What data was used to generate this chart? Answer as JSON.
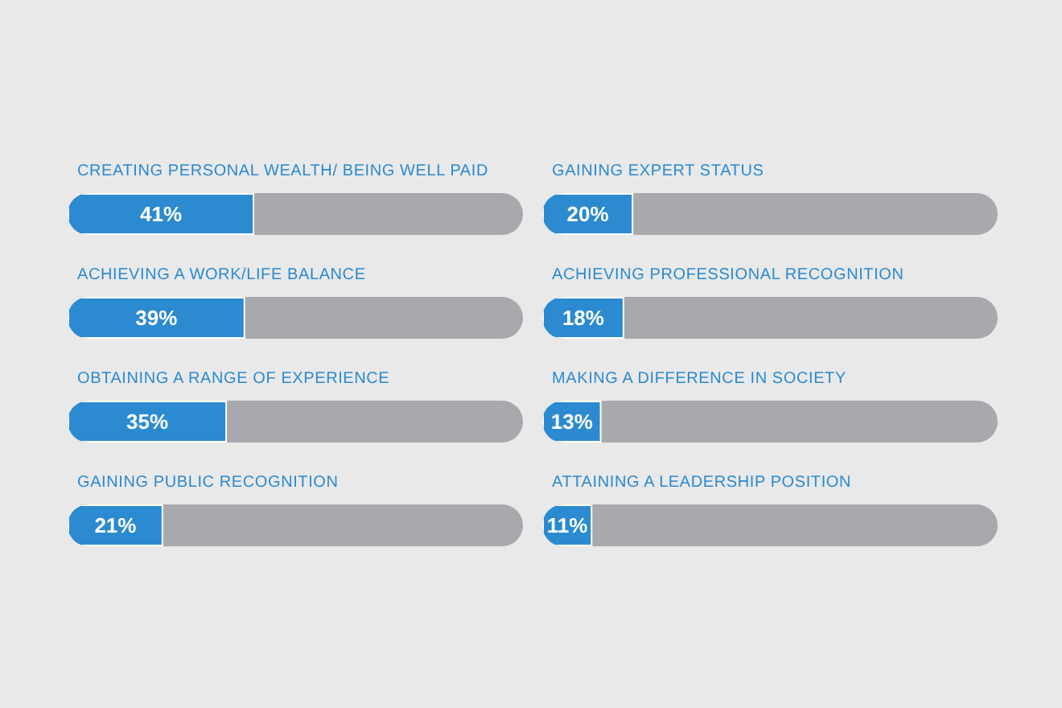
{
  "chart_data": [
    {
      "type": "bar",
      "orientation": "horizontal",
      "stacked": true,
      "xlim": [
        0,
        100
      ],
      "tick_labels": false,
      "categories": [
        "CREATING PERSONAL WEALTH/ BEING WELL PAID",
        "ACHIEVING A WORK/LIFE BALANCE",
        "OBTAINING A RANGE OF EXPERIENCE",
        "GAINING PUBLIC RECOGNITION"
      ],
      "series": [
        {
          "color": "#2b8ad0",
          "values": [
            41,
            39,
            35,
            21
          ],
          "value_labels": [
            "41%",
            "39%",
            "35%",
            "21%"
          ]
        },
        {
          "color": "#a7a9ac",
          "values": [
            59,
            61,
            65,
            79
          ]
        }
      ]
    },
    {
      "type": "bar",
      "orientation": "horizontal",
      "stacked": true,
      "xlim": [
        0,
        100
      ],
      "tick_labels": false,
      "categories": [
        "GAINING EXPERT STATUS",
        "ACHIEVING PROFESSIONAL RECOGNITION",
        "MAKING A DIFFERENCE IN SOCIETY",
        "ATTAINING A LEADERSHIP POSITION"
      ],
      "series": [
        {
          "color": "#2b8ad0",
          "values": [
            20,
            18,
            13,
            11
          ],
          "value_labels": [
            "20%",
            "18%",
            "13%",
            "11%"
          ]
        },
        {
          "color": "#a7a9ac",
          "values": [
            80,
            82,
            87,
            89
          ]
        }
      ]
    }
  ]
}
